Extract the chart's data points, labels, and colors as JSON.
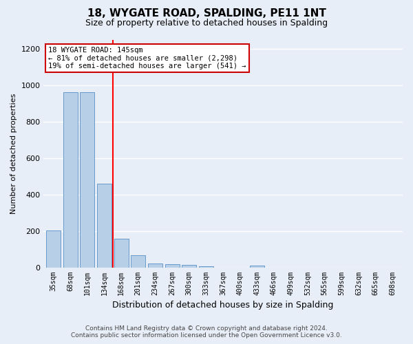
{
  "title": "18, WYGATE ROAD, SPALDING, PE11 1NT",
  "subtitle": "Size of property relative to detached houses in Spalding",
  "xlabel": "Distribution of detached houses by size in Spalding",
  "ylabel": "Number of detached properties",
  "categories": [
    "35sqm",
    "68sqm",
    "101sqm",
    "134sqm",
    "168sqm",
    "201sqm",
    "234sqm",
    "267sqm",
    "300sqm",
    "333sqm",
    "367sqm",
    "400sqm",
    "433sqm",
    "466sqm",
    "499sqm",
    "532sqm",
    "565sqm",
    "599sqm",
    "632sqm",
    "665sqm",
    "698sqm"
  ],
  "values": [
    203,
    960,
    960,
    460,
    160,
    70,
    25,
    20,
    16,
    10,
    0,
    0,
    12,
    0,
    0,
    0,
    0,
    0,
    0,
    0,
    0
  ],
  "bar_color": "#b8cfe8",
  "bar_edge_color": "#6699cc",
  "background_color": "#e8eef8",
  "grid_color": "#ffffff",
  "red_line_x": 3.5,
  "annotation_line1": "18 WYGATE ROAD: 145sqm",
  "annotation_line2": "← 81% of detached houses are smaller (2,298)",
  "annotation_line3": "19% of semi-detached houses are larger (541) →",
  "annotation_box_color": "#ffffff",
  "annotation_border_color": "#cc0000",
  "footer_line1": "Contains HM Land Registry data © Crown copyright and database right 2024.",
  "footer_line2": "Contains public sector information licensed under the Open Government Licence v3.0.",
  "ylim": [
    0,
    1250
  ],
  "yticks": [
    0,
    200,
    400,
    600,
    800,
    1000,
    1200
  ]
}
